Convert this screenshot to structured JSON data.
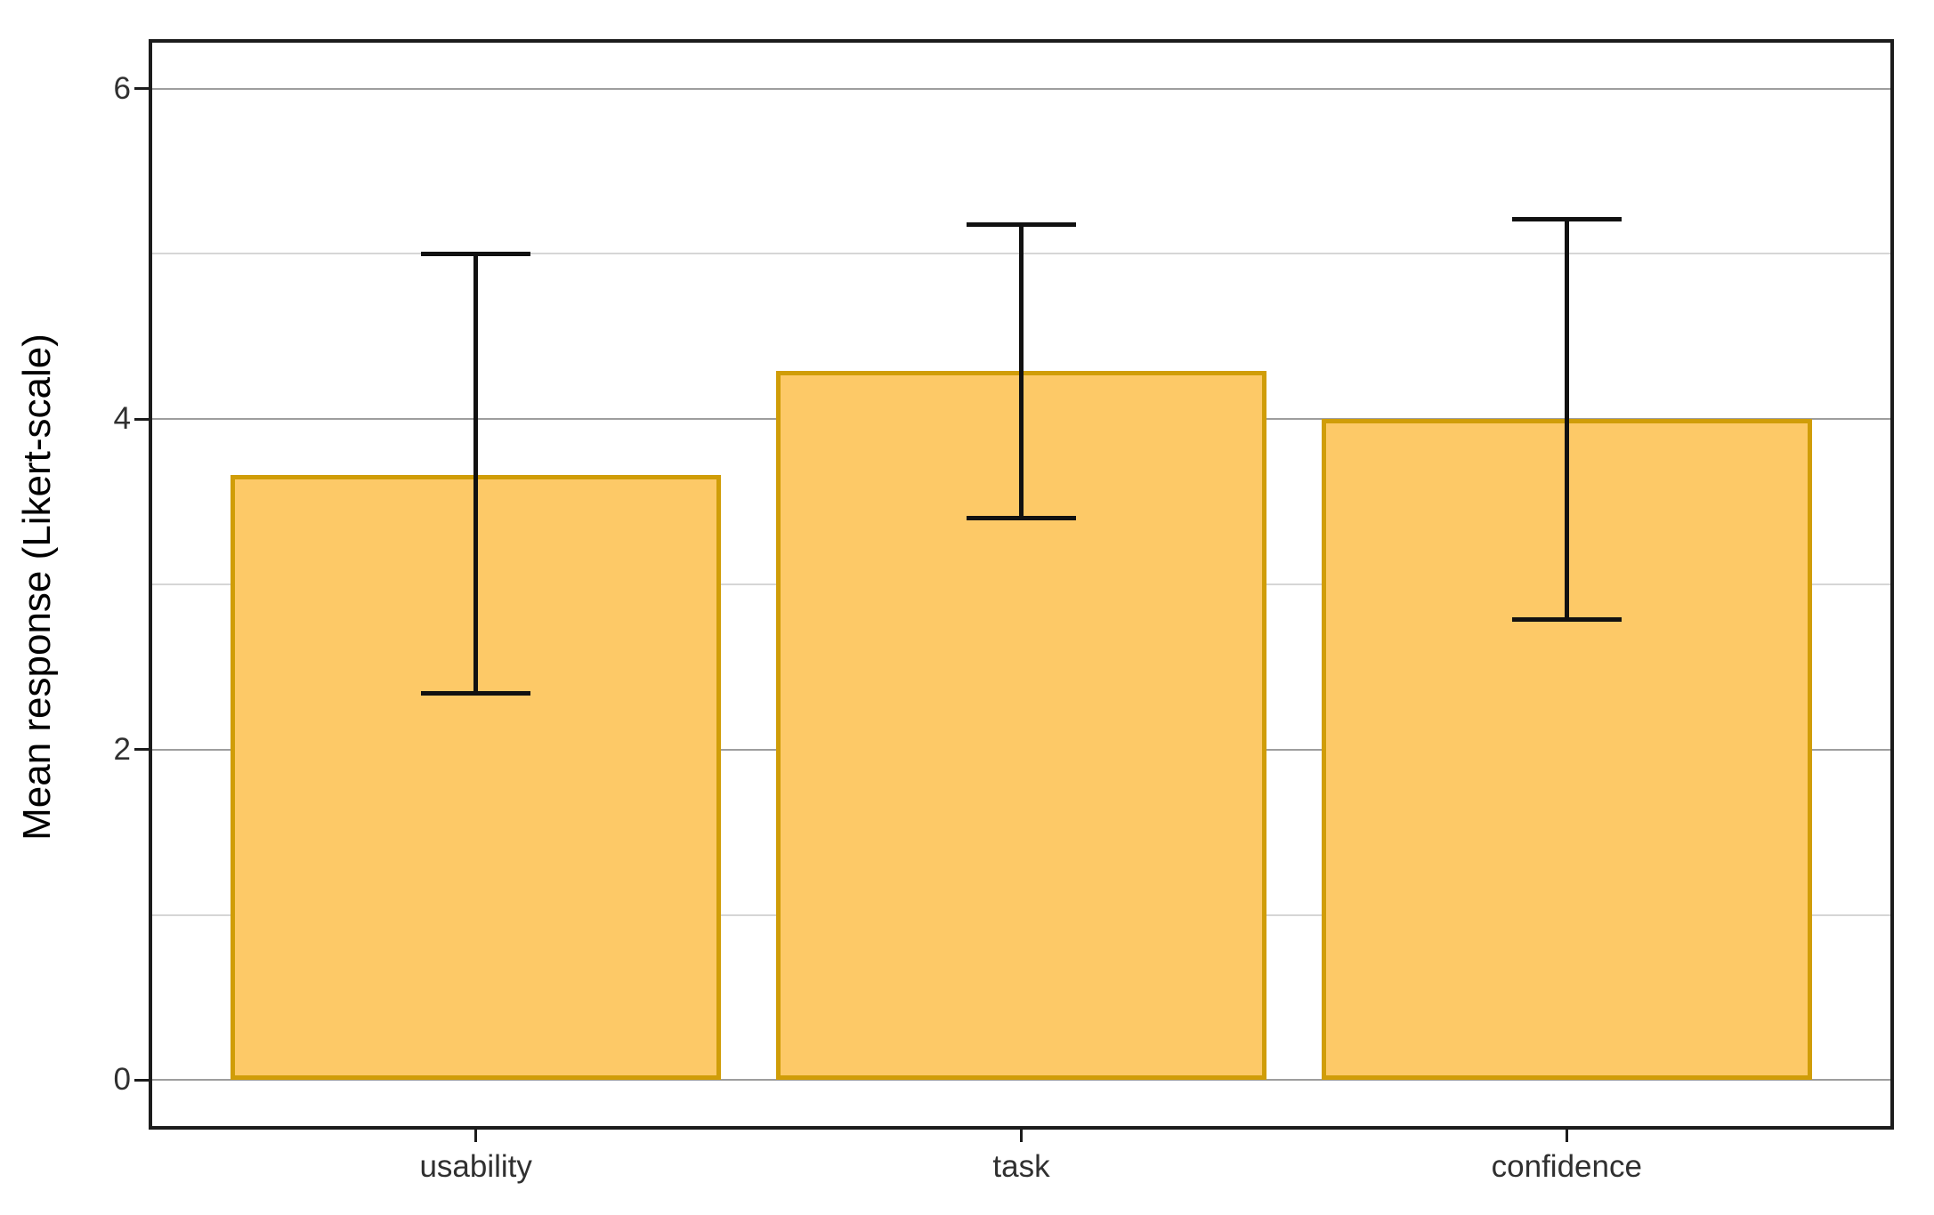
{
  "chart_data": {
    "type": "bar",
    "categories": [
      "usability",
      "task",
      "confidence"
    ],
    "values": [
      3.66,
      4.29,
      4.0
    ],
    "error_low": [
      2.34,
      3.4,
      2.79
    ],
    "error_high": [
      5.0,
      5.18,
      5.21
    ],
    "title": "",
    "xlabel": "",
    "ylabel": "Mean response (Likert-scale)",
    "ylim": [
      -0.3,
      6.3
    ],
    "yticks_major": [
      0,
      2,
      4,
      6
    ],
    "yticks_minor": [
      1,
      3,
      5
    ],
    "grid": "on",
    "legend": "none",
    "bar_width_frac": 0.9,
    "cap_width_frac": 0.2,
    "colors": {
      "bar_fill": "#FDC967",
      "bar_border": "#D09D08",
      "error_bar": "#111111",
      "panel_border": "#1C1C1C",
      "grid_major": "#9E9E9E",
      "grid_minor": "#D6D6D6",
      "axis_text": "#303030",
      "axis_title": "#000000"
    }
  }
}
